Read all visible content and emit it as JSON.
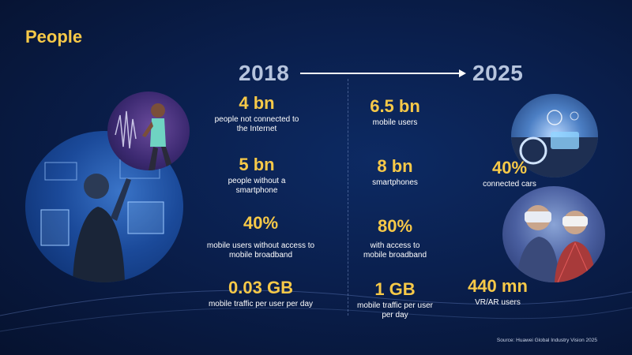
{
  "slide": {
    "title": "People",
    "source": "Source: Huawei Global Industry Vision 2025"
  },
  "years": {
    "from": "2018",
    "to": "2025"
  },
  "stats_2018": [
    {
      "value": "4 bn",
      "desc_lines": [
        "people not connected to",
        "the Internet"
      ]
    },
    {
      "value": "5 bn",
      "desc_lines": [
        "people without a",
        "smartphone"
      ]
    },
    {
      "value": "40%",
      "desc_lines": [
        "mobile users without access to",
        "mobile broadband"
      ]
    },
    {
      "value": "0.03 GB",
      "desc_lines": [
        "mobile traffic per user per day"
      ]
    }
  ],
  "stats_2025": [
    {
      "value": "6.5 bn",
      "desc_lines": [
        "mobile users"
      ]
    },
    {
      "value": "8 bn",
      "desc_lines": [
        "smartphones"
      ]
    },
    {
      "value": "80%",
      "desc_lines": [
        "with access to",
        "mobile broadband"
      ]
    },
    {
      "value": "1 GB",
      "desc_lines": [
        "mobile traffic per user",
        "per day"
      ]
    }
  ],
  "stats_extra": [
    {
      "value": "40%",
      "desc_lines": [
        "connected cars"
      ]
    },
    {
      "value": "440 mn",
      "desc_lines": [
        "VR/AR users"
      ]
    }
  ],
  "colors": {
    "accent": "#f7c948",
    "year": "#b6c4dd",
    "background": "#0a1f4d"
  },
  "images": [
    {
      "name": "runner-photo",
      "icon": "runner-image"
    },
    {
      "name": "hud-person-photo",
      "icon": "hud-person-image"
    },
    {
      "name": "car-dashboard-photo",
      "icon": "car-dashboard-image"
    },
    {
      "name": "vr-users-photo",
      "icon": "vr-headset-image"
    }
  ]
}
